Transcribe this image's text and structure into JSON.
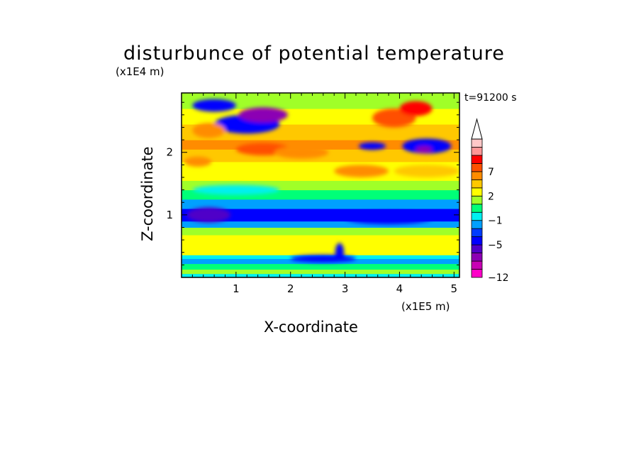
{
  "chart_data": {
    "type": "heatmap",
    "title": "disturbunce of potential temperature",
    "xlabel": "X-coordinate",
    "ylabel": "Z-coordinate",
    "x_unit": "(x1E5 m)",
    "y_unit": "(x1E4 m)",
    "time_label": "t=91200 s",
    "xlim": [
      0,
      5.1
    ],
    "ylim": [
      0,
      2.95
    ],
    "x_ticks": [
      1,
      2,
      3,
      4,
      5
    ],
    "y_ticks": [
      1,
      2
    ],
    "x_tick_labels": [
      "1",
      "2",
      "3",
      "4",
      "5"
    ],
    "y_tick_labels": [
      "1",
      "2"
    ],
    "colorbar": {
      "levels": [
        -12,
        -11,
        -9,
        -7,
        -5,
        -3,
        -2,
        -1,
        0,
        1,
        2,
        4,
        5,
        7,
        8,
        9,
        10
      ],
      "colors": [
        "#ff00c8",
        "#c800b4",
        "#8c00b4",
        "#5000c8",
        "#0000ff",
        "#003cff",
        "#00a0ff",
        "#00f0f0",
        "#00ff78",
        "#a0ff28",
        "#ffff00",
        "#ffc800",
        "#ff8c00",
        "#ff5000",
        "#ff0000",
        "#ff9696",
        "#ffc8c8"
      ],
      "labeled": [
        "-12",
        "-5",
        "-1",
        "2",
        "7"
      ],
      "labeled_values": [
        -12,
        -5,
        -1,
        2,
        7
      ],
      "extend_max": true
    },
    "bands": [
      {
        "z": [
          0.0,
          0.06
        ],
        "value": -0.5
      },
      {
        "z": [
          0.06,
          0.13
        ],
        "value": 1.5
      },
      {
        "z": [
          0.13,
          0.22
        ],
        "value": 0.5
      },
      {
        "z": [
          0.22,
          0.3
        ],
        "value": -1.5
      },
      {
        "z": [
          0.3,
          0.36
        ],
        "value": -0.5
      },
      {
        "z": [
          0.36,
          0.45
        ],
        "value": 2.5
      },
      {
        "z": [
          0.45,
          0.55
        ],
        "value": 3.5
      },
      {
        "z": [
          0.55,
          0.68
        ],
        "value": 2.5
      },
      {
        "z": [
          0.68,
          0.8
        ],
        "value": 1.5
      },
      {
        "z": [
          0.8,
          0.9
        ],
        "value": -1.5
      },
      {
        "z": [
          0.9,
          1.1
        ],
        "value": -4.5
      },
      {
        "z": [
          1.1,
          1.25
        ],
        "value": -1.5
      },
      {
        "z": [
          1.25,
          1.4
        ],
        "value": 0.5
      },
      {
        "z": [
          1.4,
          1.55
        ],
        "value": 1.5
      },
      {
        "z": [
          1.55,
          1.7
        ],
        "value": 2.5
      },
      {
        "z": [
          1.7,
          1.85
        ],
        "value": 3.5
      },
      {
        "z": [
          1.85,
          2.05
        ],
        "value": 4.5
      },
      {
        "z": [
          2.05,
          2.2
        ],
        "value": 5.5
      },
      {
        "z": [
          2.2,
          2.45
        ],
        "value": 4.5
      },
      {
        "z": [
          2.45,
          2.7
        ],
        "value": 2.5
      },
      {
        "z": [
          2.7,
          2.95
        ],
        "value": 1.5
      }
    ],
    "features": [
      {
        "x": 1.2,
        "z": 2.45,
        "rx": 0.6,
        "rz": 0.15,
        "value": -4.5
      },
      {
        "x": 1.5,
        "z": 2.6,
        "rx": 0.45,
        "rz": 0.12,
        "value": -7.5
      },
      {
        "x": 0.6,
        "z": 2.75,
        "rx": 0.4,
        "rz": 0.1,
        "value": -4.5
      },
      {
        "x": 1.5,
        "z": 2.05,
        "rx": 0.5,
        "rz": 0.1,
        "value": 7.5
      },
      {
        "x": 2.2,
        "z": 2.0,
        "rx": 0.5,
        "rz": 0.1,
        "value": 6.5
      },
      {
        "x": 0.5,
        "z": 2.35,
        "rx": 0.3,
        "rz": 0.12,
        "value": 6.5
      },
      {
        "x": 0.3,
        "z": 1.85,
        "rx": 0.25,
        "rz": 0.08,
        "value": 6.5
      },
      {
        "x": 3.9,
        "z": 2.55,
        "rx": 0.4,
        "rz": 0.15,
        "value": 7.5
      },
      {
        "x": 4.3,
        "z": 2.7,
        "rx": 0.3,
        "rz": 0.12,
        "value": 8.5
      },
      {
        "x": 4.5,
        "z": 2.1,
        "rx": 0.45,
        "rz": 0.12,
        "value": -4.5
      },
      {
        "x": 4.45,
        "z": 2.05,
        "rx": 0.15,
        "rz": 0.05,
        "value": -7.5
      },
      {
        "x": 3.5,
        "z": 2.1,
        "rx": 0.25,
        "rz": 0.06,
        "value": -4.5
      },
      {
        "x": 3.3,
        "z": 1.7,
        "rx": 0.5,
        "rz": 0.1,
        "value": 5.5
      },
      {
        "x": 4.5,
        "z": 1.7,
        "rx": 0.6,
        "rz": 0.1,
        "value": 4.5
      },
      {
        "x": 1.0,
        "z": 1.4,
        "rx": 0.8,
        "rz": 0.08,
        "value": -0.5
      },
      {
        "x": 3.8,
        "z": 0.95,
        "rx": 0.8,
        "rz": 0.1,
        "value": -4.5
      },
      {
        "x": 0.5,
        "z": 1.0,
        "rx": 0.4,
        "rz": 0.12,
        "value": -5.5
      },
      {
        "x": 2.6,
        "z": 0.3,
        "rx": 0.6,
        "rz": 0.06,
        "value": -4.5
      },
      {
        "x": 2.9,
        "z": 0.4,
        "rx": 0.08,
        "rz": 0.15,
        "value": -3.5
      },
      {
        "x": 4.6,
        "z": 0.5,
        "rx": 0.4,
        "rz": 0.1,
        "value": 2.5
      }
    ]
  }
}
